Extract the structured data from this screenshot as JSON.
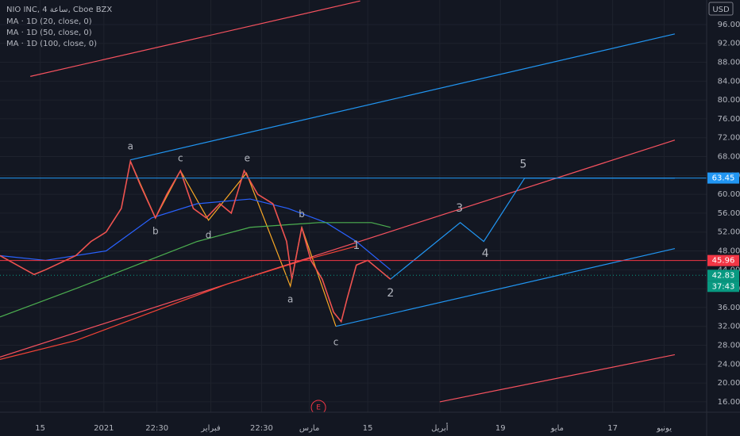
{
  "chart_data": {
    "type": "line",
    "title": "NIO INC, 4 ساعة, Cboe BZX",
    "currency": "USD",
    "xlim": [
      0,
      186.4
    ],
    "ylim": [
      13.8,
      101.2
    ],
    "yticks": [
      {
        "value": 16,
        "label": "16.00"
      },
      {
        "value": 20,
        "label": "20.00"
      },
      {
        "value": 24,
        "label": "24.00"
      },
      {
        "value": 28,
        "label": "28.00"
      },
      {
        "value": 32,
        "label": "32.00"
      },
      {
        "value": 36,
        "label": "36.00"
      },
      {
        "value": 40,
        "label": "40.00"
      },
      {
        "value": 44,
        "label": "44.00"
      },
      {
        "value": 48,
        "label": "48.00"
      },
      {
        "value": 52,
        "label": "52.00"
      },
      {
        "value": 56,
        "label": "56.00"
      },
      {
        "value": 60,
        "label": "60.00"
      },
      {
        "value": 64,
        "label": "64.00"
      },
      {
        "value": 68,
        "label": "68.00"
      },
      {
        "value": 72,
        "label": "72.00"
      },
      {
        "value": 76,
        "label": "76.00"
      },
      {
        "value": 80,
        "label": "80.00"
      },
      {
        "value": 84,
        "label": "84.00"
      },
      {
        "value": 88,
        "label": "88.00"
      },
      {
        "value": 92,
        "label": "92.00"
      },
      {
        "value": 96,
        "label": "96.00"
      }
    ],
    "xticks": [
      {
        "value": 10.6,
        "label": "15"
      },
      {
        "value": 27.4,
        "label": "2021"
      },
      {
        "value": 41.4,
        "label": "22:30"
      },
      {
        "value": 55.6,
        "label": "فبراير"
      },
      {
        "value": 69,
        "label": "22:30"
      },
      {
        "value": 81.6,
        "label": "مارس"
      },
      {
        "value": 97,
        "label": "15"
      },
      {
        "value": 116,
        "label": "أبريل"
      },
      {
        "value": 132,
        "label": "19"
      },
      {
        "value": 147,
        "label": "مايو"
      },
      {
        "value": 161.6,
        "label": "17"
      },
      {
        "value": 175.2,
        "label": "يونيو"
      }
    ],
    "grid": true,
    "close": {
      "color": "#ef5350",
      "x": [
        0,
        9,
        12,
        20,
        24,
        28,
        32,
        34.4,
        37,
        41,
        44,
        47.6,
        51,
        54.4,
        58,
        61,
        64.4,
        68,
        72,
        75.6,
        77,
        79.6,
        82,
        85,
        88,
        90,
        91.6,
        94,
        97,
        100,
        103
      ],
      "values": [
        47,
        43,
        44,
        47,
        50,
        52,
        57,
        67,
        62,
        55,
        60,
        65,
        57,
        55,
        58,
        56,
        65,
        60,
        58,
        50,
        42,
        53,
        46,
        42,
        35,
        33,
        38,
        45,
        46,
        44,
        42
      ]
    },
    "series": [
      {
        "name": "MA · 1D (20, close, 0)",
        "color": "#2962ff",
        "x": [
          0,
          12,
          28,
          40,
          52,
          66,
          76,
          86,
          94,
          103
        ],
        "values": [
          47,
          46,
          48,
          55,
          58,
          59,
          57,
          54,
          50,
          44
        ]
      },
      {
        "name": "MA · 1D (50, close, 0)",
        "color": "#4caf50",
        "x": [
          0,
          20,
          36,
          52,
          66,
          84,
          98,
          103
        ],
        "values": [
          34,
          40,
          45,
          50,
          53,
          54,
          54,
          53
        ]
      },
      {
        "name": "MA · 1D (100, close, 0)",
        "color": "#f44336",
        "x": [
          0,
          20,
          40,
          60,
          80,
          94
        ],
        "values": [
          25,
          29,
          35,
          41,
          46,
          49
        ]
      }
    ],
    "drawings": [
      {
        "color": "#2196f3",
        "x": [
          34.4,
          178
        ],
        "values": [
          67.3,
          94
        ]
      },
      {
        "color": "#2196f3",
        "x": [
          88.6,
          178
        ],
        "values": [
          32,
          48.5
        ]
      },
      {
        "color": "#f7525f",
        "x": [
          8,
          95
        ],
        "values": [
          85,
          101
        ]
      },
      {
        "color": "#f7525f",
        "x": [
          0,
          178
        ],
        "values": [
          25.5,
          71.5
        ]
      },
      {
        "color": "#f7525f",
        "x": [
          116,
          178
        ],
        "values": [
          16,
          26
        ]
      },
      {
        "color": "#f9a825",
        "x": [
          34.4,
          41,
          47.6,
          55,
          65,
          76.6,
          79.6,
          88.6
        ],
        "values": [
          67,
          55,
          65,
          54.5,
          64.5,
          40.5,
          53,
          32
        ]
      },
      {
        "color": "#2196f3",
        "x": [
          103,
          121.4,
          127.6,
          138.4,
          178
        ],
        "values": [
          42,
          54,
          50,
          63.45,
          63.45
        ]
      }
    ],
    "annotations": [
      {
        "text": "a",
        "x": 34.4,
        "y": 70.1,
        "color": "#f9a825"
      },
      {
        "text": "c",
        "x": 47.6,
        "y": 67.6,
        "color": "#f9a825"
      },
      {
        "text": "e",
        "x": 65.2,
        "y": 67.6,
        "color": "#f9a825"
      },
      {
        "text": "b",
        "x": 41,
        "y": 52.1,
        "color": "#f9a825"
      },
      {
        "text": "d",
        "x": 55,
        "y": 51.3,
        "color": "#f9a825"
      },
      {
        "text": "b",
        "x": 79.6,
        "y": 55.7,
        "color": "#ffeb3b"
      },
      {
        "text": "a",
        "x": 76.6,
        "y": 37.7,
        "color": "#ffeb3b"
      },
      {
        "text": "c",
        "x": 88.6,
        "y": 28.6,
        "color": "#ffeb3b"
      },
      {
        "text": "1",
        "x": 94,
        "y": 49.1,
        "color": "#2196f3"
      },
      {
        "text": "2",
        "x": 103,
        "y": 39,
        "color": "#2196f3"
      },
      {
        "text": "3",
        "x": 121.2,
        "y": 57,
        "color": "#2196f3"
      },
      {
        "text": "4",
        "x": 128,
        "y": 47.4,
        "color": "#2196f3"
      },
      {
        "text": "5",
        "x": 138,
        "y": 66.3,
        "color": "#2196f3"
      }
    ],
    "price_labels": [
      {
        "value": 63.45,
        "label": "63.45",
        "color": "#2196f3"
      },
      {
        "value": 45.96,
        "label": "45.96",
        "color": "#f23645"
      },
      {
        "value": 42.83,
        "label": "42.83",
        "color": "#089981"
      }
    ],
    "countdown": "37:43",
    "event_marker": {
      "x": 84,
      "text": "E"
    }
  }
}
